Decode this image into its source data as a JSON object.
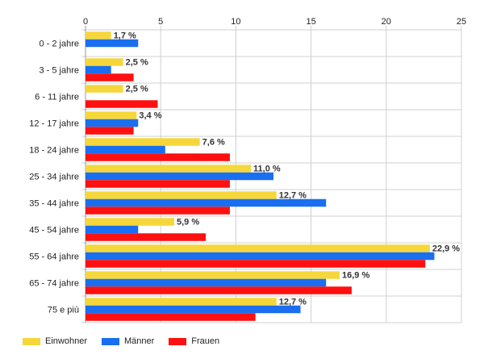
{
  "chart_data": {
    "type": "bar",
    "orientation": "horizontal",
    "categories": [
      "0 - 2 jahre",
      "3 - 5 jahre",
      "6 - 11 jahre",
      "12 - 17 jahre",
      "18 - 24 jahre",
      "25 - 34 jahre",
      "35 - 44 jahre",
      "45 - 54 jahre",
      "55 - 64 jahre",
      "65 - 74 jahre",
      "75 e più"
    ],
    "series": [
      {
        "name": "Einwohner",
        "color": "#f5d73b",
        "values": [
          1.7,
          2.5,
          2.5,
          3.4,
          7.6,
          11.0,
          12.7,
          5.9,
          22.9,
          16.9,
          12.7
        ]
      },
      {
        "name": "Männer",
        "color": "#1a6ef0",
        "values": [
          3.5,
          1.7,
          0,
          3.5,
          5.3,
          12.5,
          16.0,
          3.5,
          23.2,
          16.0,
          14.3
        ]
      },
      {
        "name": "Frauen",
        "color": "#ff1010",
        "values": [
          0,
          3.2,
          4.8,
          3.2,
          9.6,
          9.6,
          9.6,
          8.0,
          22.6,
          17.7,
          11.3
        ]
      }
    ],
    "data_labels": [
      "1,7 %",
      "2,5 %",
      "2,5 %",
      "3,4 %",
      "7,6 %",
      "11,0 %",
      "12,7 %",
      "5,9 %",
      "22,9 %",
      "16,9 %",
      "12,7 %"
    ],
    "xticks": [
      "0",
      "5",
      "10",
      "15",
      "20",
      "25"
    ],
    "xlim": [
      0,
      25
    ],
    "grid": true,
    "legend_position": "bottom-left",
    "title": "",
    "xlabel": "",
    "ylabel": ""
  }
}
